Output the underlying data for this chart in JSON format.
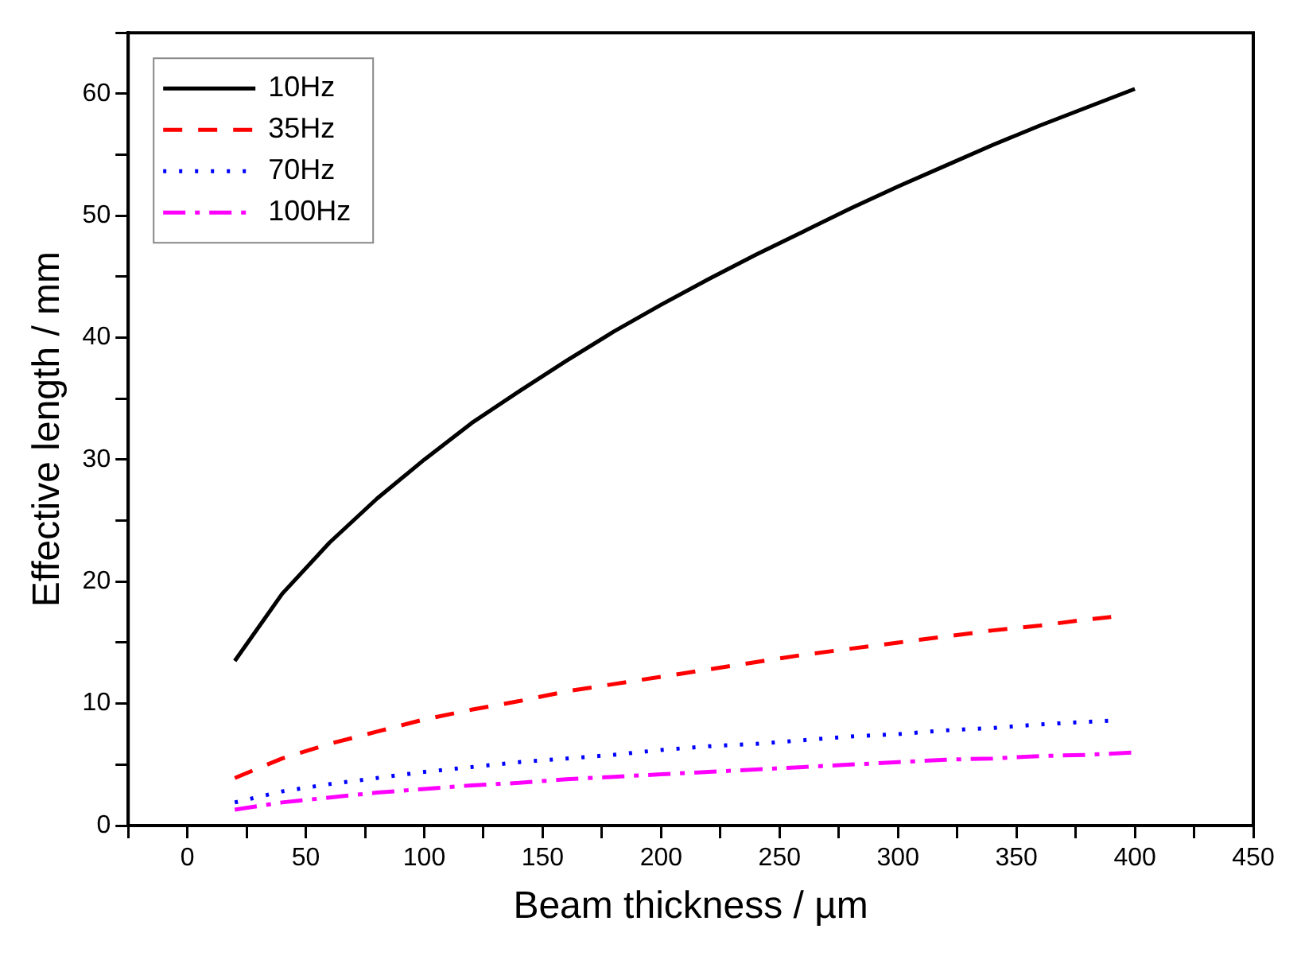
{
  "chart_data": {
    "type": "line",
    "xlabel": "Beam thickness / µm",
    "ylabel": "Effective length / mm",
    "xlim": [
      -25,
      450
    ],
    "ylim": [
      0,
      65
    ],
    "xticks": [
      {
        "value": -25,
        "label": null
      },
      0,
      {
        "value": 25,
        "label": null
      },
      50,
      {
        "value": 75,
        "label": null
      },
      100,
      {
        "value": 125,
        "label": null
      },
      150,
      {
        "value": 175,
        "label": null
      },
      200,
      {
        "value": 225,
        "label": null
      },
      250,
      {
        "value": 275,
        "label": null
      },
      300,
      {
        "value": 325,
        "label": null
      },
      350,
      {
        "value": 375,
        "label": null
      },
      400,
      {
        "value": 425,
        "label": null
      },
      450
    ],
    "yticks": [
      0,
      {
        "value": 5,
        "label": null
      },
      10,
      {
        "value": 15,
        "label": null
      },
      20,
      {
        "value": 25,
        "label": null
      },
      30,
      {
        "value": 35,
        "label": null
      },
      40,
      {
        "value": 45,
        "label": null
      },
      50,
      {
        "value": 55,
        "label": null
      },
      60,
      {
        "value": 65,
        "label": null
      }
    ],
    "grid": false,
    "legend": "top left",
    "marker": "none",
    "series": [
      {
        "name": "10Hz",
        "color": "#000000",
        "line_style": "solid",
        "x": [
          20,
          40,
          60,
          80,
          100,
          120,
          140,
          160,
          180,
          200,
          220,
          240,
          260,
          280,
          300,
          320,
          340,
          360,
          380,
          400
        ],
        "values": [
          13.5,
          19,
          23.2,
          26.8,
          30,
          33,
          35.6,
          38.1,
          40.5,
          42.7,
          44.8,
          46.8,
          48.7,
          50.6,
          52.4,
          54.1,
          55.8,
          57.4,
          58.9,
          60.4
        ]
      },
      {
        "name": "35Hz",
        "color": "#ff0000",
        "line_style": "dashed",
        "x": [
          20,
          40,
          60,
          80,
          100,
          120,
          140,
          160,
          180,
          200,
          220,
          240,
          260,
          280,
          300,
          320,
          340,
          360,
          380,
          390
        ],
        "values": [
          3.9,
          5.5,
          6.7,
          7.7,
          8.7,
          9.5,
          10.2,
          11,
          11.6,
          12.2,
          12.8,
          13.4,
          14,
          14.5,
          15,
          15.5,
          16,
          16.4,
          16.9,
          17.1
        ]
      },
      {
        "name": "70Hz",
        "color": "#0000ff",
        "line_style": "dotted",
        "x": [
          20,
          40,
          60,
          80,
          100,
          120,
          140,
          160,
          180,
          200,
          220,
          240,
          260,
          280,
          300,
          320,
          340,
          360,
          380,
          390
        ],
        "values": [
          1.9,
          2.8,
          3.4,
          3.9,
          4.4,
          4.8,
          5.2,
          5.5,
          5.8,
          6.2,
          6.5,
          6.7,
          7,
          7.3,
          7.5,
          7.8,
          8,
          8.3,
          8.5,
          8.6
        ]
      },
      {
        "name": "100Hz",
        "color": "#ff00ff",
        "line_style": "dashdot",
        "x": [
          20,
          40,
          60,
          80,
          100,
          120,
          140,
          160,
          180,
          200,
          220,
          240,
          260,
          280,
          300,
          320,
          340,
          360,
          380,
          400
        ],
        "values": [
          1.3,
          1.9,
          2.3,
          2.7,
          3,
          3.3,
          3.5,
          3.8,
          4,
          4.2,
          4.4,
          4.6,
          4.8,
          5,
          5.2,
          5.4,
          5.5,
          5.7,
          5.8,
          6
        ]
      }
    ]
  }
}
